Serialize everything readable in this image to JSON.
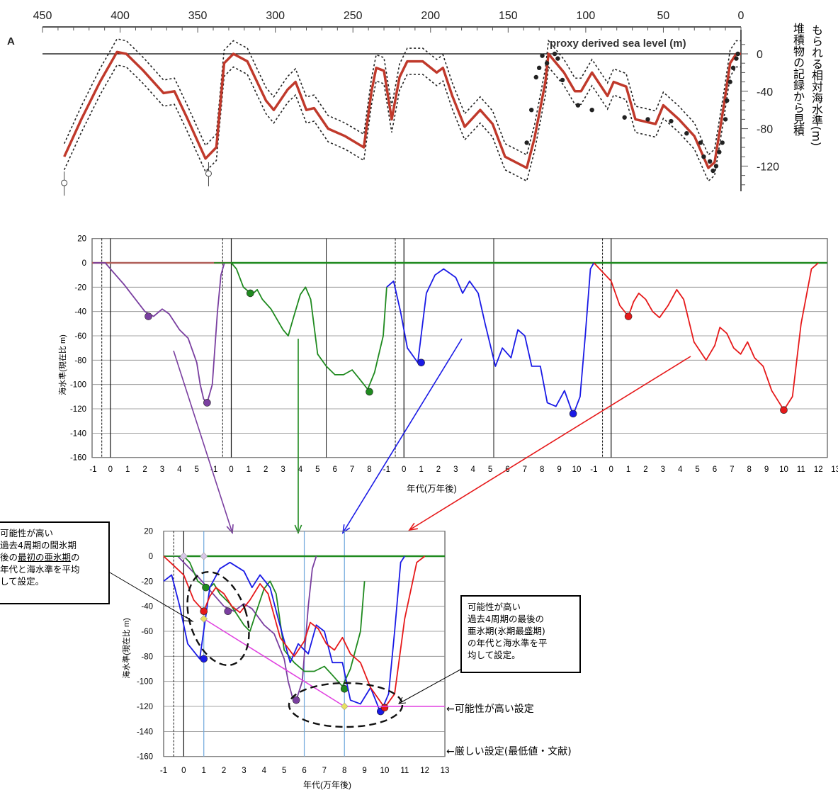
{
  "chart_data": [
    {
      "type": "line",
      "panel": "A",
      "proxy_label": "proxy derived sea level (m)",
      "x_ticks": [
        "450",
        "400",
        "350",
        "300",
        "250",
        "200",
        "150",
        "100",
        "50",
        "0"
      ],
      "xlim": [
        450,
        0
      ],
      "y_ticks": [
        "0",
        "-40",
        "-80",
        "-120"
      ],
      "ylim": [
        -140,
        15
      ],
      "ylabel_lines": [
        "堆積物の記録から見積",
        "もられる相対海水準(m)"
      ],
      "series": [
        {
          "values": [
            [
              436,
              -110
            ],
            [
              425,
              -70
            ],
            [
              413,
              -30
            ],
            [
              402,
              2
            ],
            [
              396,
              0
            ],
            [
              385,
              -18
            ],
            [
              372,
              -42
            ],
            [
              365,
              -40
            ],
            [
              357,
              -68
            ],
            [
              345,
              -112
            ],
            [
              338,
              -100
            ],
            [
              333,
              -10
            ],
            [
              327,
              0
            ],
            [
              318,
              -8
            ],
            [
              306,
              -50
            ],
            [
              301,
              -60
            ],
            [
              292,
              -38
            ],
            [
              287,
              -30
            ],
            [
              280,
              -60
            ],
            [
              275,
              -58
            ],
            [
              266,
              -80
            ],
            [
              255,
              -88
            ],
            [
              243,
              -100
            ],
            [
              238,
              -40
            ],
            [
              235,
              -15
            ],
            [
              230,
              -18
            ],
            [
              225,
              -70
            ],
            [
              220,
              -25
            ],
            [
              215,
              -8
            ],
            [
              205,
              -8
            ],
            [
              196,
              -20
            ],
            [
              192,
              -15
            ],
            [
              186,
              -45
            ],
            [
              178,
              -78
            ],
            [
              168,
              -60
            ],
            [
              160,
              -75
            ],
            [
              152,
              -110
            ],
            [
              138,
              -122
            ],
            [
              133,
              -90
            ],
            [
              126,
              -30
            ],
            [
              124,
              0
            ],
            [
              114,
              -20
            ],
            [
              107,
              -40
            ],
            [
              103,
              -40
            ],
            [
              96,
              -20
            ],
            [
              86,
              -45
            ],
            [
              82,
              -30
            ],
            [
              74,
              -35
            ],
            [
              68,
              -70
            ],
            [
              55,
              -75
            ],
            [
              50,
              -55
            ],
            [
              40,
              -70
            ],
            [
              30,
              -88
            ],
            [
              21,
              -122
            ],
            [
              17,
              -116
            ],
            [
              11,
              -55
            ],
            [
              7,
              -10
            ],
            [
              3,
              0
            ],
            [
              0,
              0
            ]
          ]
        }
      ]
    },
    {
      "type": "line",
      "panel": "middle",
      "xlabel": "年代(万年後)",
      "ylabel": "海水準(現在比 m)",
      "y_ticks": [
        "20",
        "0",
        "-20",
        "-40",
        "-60",
        "-80",
        "-100",
        "-120",
        "-140",
        "-160"
      ],
      "ylim": [
        -160,
        20
      ],
      "x_tick_labels": [
        "-1",
        "0",
        "1",
        "2",
        "3",
        "4",
        "5",
        "-1",
        "0",
        "1",
        "2",
        "3",
        "4",
        "5",
        "6",
        "7",
        "8",
        "-1",
        "0",
        "1",
        "2",
        "3",
        "4",
        "5",
        "6",
        "7",
        "8",
        "9",
        "10",
        "-1",
        "0",
        "1",
        "2",
        "3",
        "4",
        "5",
        "6",
        "7",
        "8",
        "9",
        "10",
        "11",
        "12",
        "13"
      ],
      "series": [
        {
          "name": "",
          "color": "#7a3fa0",
          "values": [
            [
              -1,
              0
            ],
            [
              -0.3,
              0
            ],
            [
              0,
              -5
            ],
            [
              0.8,
              -18
            ],
            [
              2,
              -40
            ],
            [
              2.5,
              -44
            ],
            [
              3,
              -38
            ],
            [
              3.4,
              -42
            ],
            [
              4,
              -55
            ],
            [
              4.5,
              -62
            ],
            [
              5,
              -82
            ],
            [
              5.2,
              -100
            ],
            [
              5.4,
              -112
            ],
            [
              5.6,
              -115
            ],
            [
              5.9,
              -100
            ],
            [
              6.2,
              -40
            ],
            [
              6.4,
              -10
            ],
            [
              6.6,
              0
            ]
          ],
          "points": [
            [
              2.2,
              -44
            ],
            [
              5.6,
              -115
            ]
          ]
        },
        {
          "name": "",
          "color": "#1f8a1f",
          "values": [
            [
              -1,
              0
            ],
            [
              0,
              0
            ],
            [
              0.3,
              -5
            ],
            [
              0.7,
              -20
            ],
            [
              1.2,
              -26
            ],
            [
              1.5,
              -22
            ],
            [
              1.8,
              -30
            ],
            [
              2.3,
              -38
            ],
            [
              3,
              -55
            ],
            [
              3.3,
              -60
            ],
            [
              3.6,
              -45
            ],
            [
              4,
              -26
            ],
            [
              4.3,
              -20
            ],
            [
              4.6,
              -30
            ],
            [
              5,
              -75
            ],
            [
              5.5,
              -85
            ],
            [
              6,
              -92
            ],
            [
              6.5,
              -92
            ],
            [
              7,
              -88
            ],
            [
              7.4,
              -95
            ],
            [
              7.9,
              -104
            ],
            [
              8.3,
              -90
            ],
            [
              8.8,
              -60
            ],
            [
              9,
              -20
            ]
          ],
          "points": [
            [
              1.1,
              -25
            ],
            [
              8,
              -106
            ]
          ]
        },
        {
          "name": "",
          "color": "#1a1ae6",
          "values": [
            [
              -1,
              -20
            ],
            [
              -0.6,
              -15
            ],
            [
              -0.2,
              -40
            ],
            [
              0.2,
              -70
            ],
            [
              0.8,
              -82
            ],
            [
              1.3,
              -25
            ],
            [
              1.8,
              -10
            ],
            [
              2.3,
              -5
            ],
            [
              3,
              -12
            ],
            [
              3.4,
              -25
            ],
            [
              3.8,
              -15
            ],
            [
              4.3,
              -25
            ],
            [
              4.7,
              -50
            ],
            [
              5.3,
              -85
            ],
            [
              5.7,
              -70
            ],
            [
              6.2,
              -78
            ],
            [
              6.6,
              -55
            ],
            [
              7,
              -60
            ],
            [
              7.4,
              -85
            ],
            [
              7.9,
              -85
            ],
            [
              8.3,
              -115
            ],
            [
              8.8,
              -118
            ],
            [
              9.3,
              -105
            ],
            [
              9.8,
              -125
            ],
            [
              10.2,
              -110
            ],
            [
              10.5,
              -60
            ],
            [
              10.8,
              -5
            ],
            [
              11,
              0
            ]
          ],
          "points": [
            [
              1,
              -82
            ],
            [
              9.8,
              -124
            ]
          ]
        },
        {
          "name": "",
          "color": "#e6191a",
          "values": [
            [
              -1,
              0
            ],
            [
              0,
              -15
            ],
            [
              0.5,
              -35
            ],
            [
              1,
              -44
            ],
            [
              1.3,
              -32
            ],
            [
              1.6,
              -25
            ],
            [
              2,
              -30
            ],
            [
              2.4,
              -40
            ],
            [
              2.8,
              -45
            ],
            [
              3.3,
              -35
            ],
            [
              3.8,
              -22
            ],
            [
              4.2,
              -30
            ],
            [
              4.8,
              -65
            ],
            [
              5.5,
              -80
            ],
            [
              6,
              -68
            ],
            [
              6.3,
              -53
            ],
            [
              6.7,
              -58
            ],
            [
              7.1,
              -70
            ],
            [
              7.5,
              -75
            ],
            [
              7.9,
              -65
            ],
            [
              8.3,
              -78
            ],
            [
              8.8,
              -85
            ],
            [
              9.3,
              -105
            ],
            [
              10,
              -121
            ],
            [
              10.5,
              -110
            ],
            [
              11,
              -50
            ],
            [
              11.6,
              -5
            ],
            [
              12,
              0
            ]
          ],
          "points": [
            [
              1,
              -44
            ],
            [
              10,
              -121
            ]
          ]
        }
      ]
    },
    {
      "type": "line",
      "panel": "bottom",
      "xlabel": "年代(万年後)",
      "ylabel": "海水準(現在比 m)",
      "x_ticks": [
        "-1",
        "0",
        "1",
        "2",
        "3",
        "4",
        "5",
        "6",
        "7",
        "8",
        "9",
        "10",
        "11",
        "12",
        "13"
      ],
      "xlim": [
        -1,
        13
      ],
      "y_ticks": [
        "20",
        "0",
        "-20",
        "-40",
        "-60",
        "-80",
        "-100",
        "-120",
        "-140",
        "-160"
      ],
      "ylim": [
        -160,
        20
      ],
      "vertical_lines_x": [
        1,
        6,
        8
      ],
      "design_points": [
        [
          0,
          0
        ],
        [
          1,
          0
        ],
        [
          1,
          -50
        ],
        [
          8,
          -120
        ]
      ],
      "setting_line": [
        [
          1,
          -50
        ],
        [
          8,
          -120
        ],
        [
          13,
          -120
        ]
      ],
      "annotations": {
        "left_box": [
          "可能性が高い",
          "過去4周期の間氷期",
          "後の最初の亜氷期の",
          "年代と海水準を平均",
          "して設定。"
        ],
        "left_box_underlined": "最初の亜氷期",
        "right_box": [
          "可能性が高い",
          "過去4周期の最後の",
          "亜氷期(氷期最盛期)",
          "の年代と海水準を平",
          "均して設定。"
        ],
        "likely_setting": "←可能性が高い設定",
        "strict_setting": "←厳しい設定(最低値・文献)"
      }
    }
  ],
  "colors": {
    "purple": "#7a3fa0",
    "green": "#1f8a1f",
    "blue": "#1a1ae6",
    "red": "#e6191a",
    "proxy_red": "#c0392b",
    "magenta": "#e040e0",
    "lightblue": "#6fa8dc",
    "diamond": "#e8e060"
  }
}
